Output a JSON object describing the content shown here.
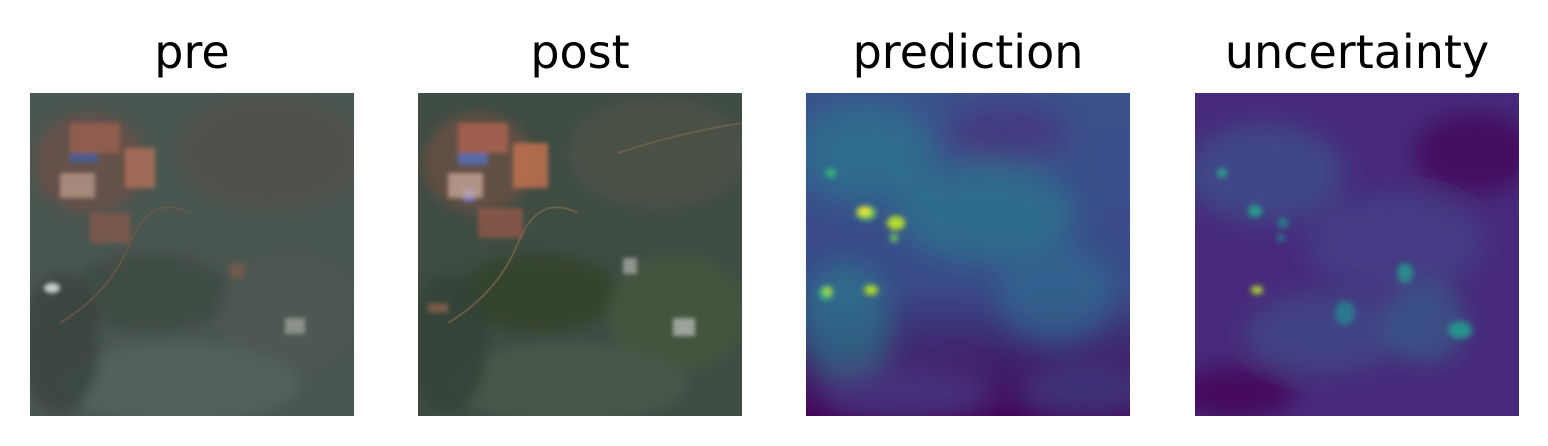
{
  "panels": [
    {
      "title": "pre",
      "image_kind": "satellite-rgb-before"
    },
    {
      "title": "post",
      "image_kind": "satellite-rgb-after"
    },
    {
      "title": "prediction",
      "image_kind": "viridis-heatmap"
    },
    {
      "title": "uncertainty",
      "image_kind": "viridis-heatmap"
    }
  ],
  "colors": {
    "viridis_low": "#440154",
    "viridis_mid": "#2a7b8e",
    "viridis_high": "#fde725",
    "satellite_vegetation": "#3c4a40",
    "satellite_soil": "#a5624a"
  }
}
